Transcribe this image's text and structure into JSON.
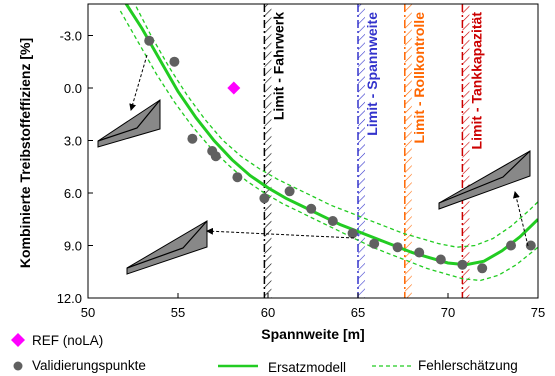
{
  "chart_data": {
    "type": "scatter",
    "xlabel": "Spannweite [m]",
    "ylabel": "Kombinierte Treibstoffeffizienz [%]",
    "xlim": [
      50,
      75
    ],
    "ylim": [
      12.0,
      -4.8
    ],
    "y_inverted": true,
    "x_ticks": [
      "50",
      "55",
      "60",
      "65",
      "70",
      "75"
    ],
    "y_ticks": [
      "-3.0",
      "0.0",
      "3.0",
      "6.0",
      "9.0",
      "12.0"
    ],
    "grid": false,
    "ref_point": {
      "name": "REF (noLA)",
      "x": 58.1,
      "y": 0.0,
      "color": "#ff00ff"
    },
    "validation_points": {
      "name": "Validierungspunkte",
      "color": "#606060",
      "points": [
        [
          53.4,
          -2.7
        ],
        [
          54.8,
          -1.5
        ],
        [
          55.8,
          2.9
        ],
        [
          56.9,
          3.6
        ],
        [
          57.1,
          3.9
        ],
        [
          58.3,
          5.1
        ],
        [
          59.8,
          6.3
        ],
        [
          61.2,
          5.9
        ],
        [
          62.4,
          6.9
        ],
        [
          63.6,
          7.6
        ],
        [
          64.7,
          8.3
        ],
        [
          65.9,
          8.9
        ],
        [
          67.2,
          9.1
        ],
        [
          68.4,
          9.4
        ],
        [
          69.6,
          9.8
        ],
        [
          70.8,
          10.1
        ],
        [
          71.9,
          10.3
        ],
        [
          73.5,
          9.0
        ],
        [
          74.6,
          9.0
        ]
      ]
    },
    "surrogate_model": {
      "name": "Ersatzmodell",
      "color": "#22cc22",
      "points": [
        [
          52.0,
          -5.0
        ],
        [
          53.0,
          -3.4
        ],
        [
          54.0,
          -1.6
        ],
        [
          55.0,
          0.2
        ],
        [
          56.0,
          1.7
        ],
        [
          57.0,
          3.0
        ],
        [
          58.0,
          4.1
        ],
        [
          59.0,
          5.0
        ],
        [
          60.0,
          5.7
        ],
        [
          61.0,
          6.3
        ],
        [
          62.0,
          6.8
        ],
        [
          63.0,
          7.3
        ],
        [
          64.0,
          7.8
        ],
        [
          65.0,
          8.2
        ],
        [
          66.0,
          8.6
        ],
        [
          67.0,
          9.0
        ],
        [
          68.0,
          9.4
        ],
        [
          69.0,
          9.7
        ],
        [
          70.0,
          10.0
        ],
        [
          71.0,
          10.1
        ],
        [
          72.0,
          9.9
        ],
        [
          73.0,
          9.3
        ],
        [
          74.0,
          8.5
        ],
        [
          75.0,
          7.5
        ]
      ]
    },
    "error_estimate": {
      "name": "Fehlerschätzung",
      "color": "#22cc22",
      "upper": [
        [
          52.5,
          -5.0
        ],
        [
          53.5,
          -3.0
        ],
        [
          54.5,
          -1.2
        ],
        [
          55.5,
          0.4
        ],
        [
          56.5,
          1.8
        ],
        [
          57.5,
          3.0
        ],
        [
          58.5,
          3.9
        ],
        [
          59.5,
          4.6
        ],
        [
          60.5,
          5.2
        ],
        [
          61.5,
          5.7
        ],
        [
          62.5,
          6.2
        ],
        [
          63.5,
          6.7
        ],
        [
          64.5,
          7.1
        ],
        [
          65.5,
          7.5
        ],
        [
          66.5,
          7.9
        ],
        [
          67.5,
          8.3
        ],
        [
          68.5,
          8.6
        ],
        [
          69.5,
          8.9
        ],
        [
          70.5,
          9.1
        ],
        [
          71.5,
          9.0
        ],
        [
          72.5,
          8.6
        ],
        [
          73.5,
          7.9
        ],
        [
          74.5,
          7.0
        ],
        [
          75.0,
          6.5
        ]
      ],
      "lower": [
        [
          51.8,
          -4.4
        ],
        [
          52.8,
          -2.6
        ],
        [
          53.8,
          -0.8
        ],
        [
          54.8,
          0.8
        ],
        [
          55.8,
          2.2
        ],
        [
          56.8,
          3.4
        ],
        [
          57.8,
          4.4
        ],
        [
          58.8,
          5.3
        ],
        [
          59.8,
          6.0
        ],
        [
          60.8,
          6.6
        ],
        [
          61.8,
          7.1
        ],
        [
          62.8,
          7.6
        ],
        [
          63.8,
          8.1
        ],
        [
          64.8,
          8.6
        ],
        [
          65.8,
          9.1
        ],
        [
          66.8,
          9.5
        ],
        [
          67.8,
          9.9
        ],
        [
          68.8,
          10.3
        ],
        [
          69.8,
          10.6
        ],
        [
          70.8,
          10.9
        ],
        [
          71.8,
          11.0
        ],
        [
          72.8,
          10.7
        ],
        [
          73.8,
          10.1
        ],
        [
          75.0,
          9.1
        ]
      ]
    },
    "limits": [
      {
        "label": "Limit - Fahrwerk",
        "x": 59.8,
        "color": "#000000"
      },
      {
        "label": "Limit - Spannweite",
        "x": 65.0,
        "color": "#3333cc"
      },
      {
        "label": "Limit - Rollkontrolle",
        "x": 67.6,
        "color": "#ff6600"
      },
      {
        "label": "Limit - Tankkapazität",
        "x": 70.8,
        "color": "#cc0000"
      }
    ],
    "legend": {
      "placement": "bottom",
      "items": [
        "REF (noLA)",
        "Validierungspunkte",
        "Ersatzmodell",
        "Fehlerschätzung"
      ]
    }
  }
}
